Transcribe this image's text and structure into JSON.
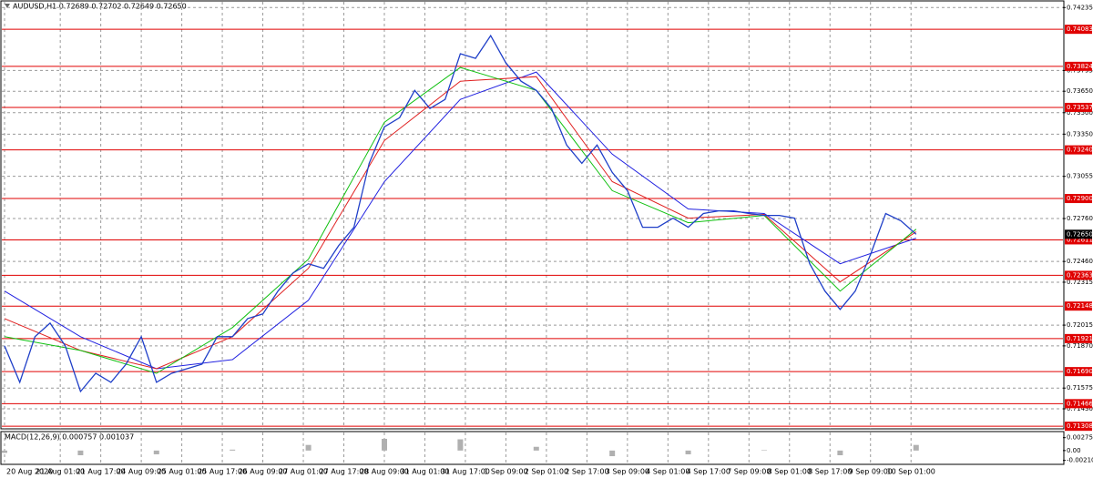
{
  "header": "AUDUSD,H1  0.72689 0.72702 0.72649 0.72650",
  "chart_data": [
    {
      "type": "line",
      "x": [
        0,
        6,
        12,
        18,
        24,
        30,
        36,
        42,
        48,
        54,
        60,
        66,
        72,
        78,
        84,
        90,
        96,
        102,
        108,
        114,
        120,
        126,
        132,
        138,
        144,
        150,
        156,
        162,
        168,
        174,
        180,
        186,
        192,
        198,
        204,
        210,
        216,
        222,
        228,
        234,
        240,
        246,
        252,
        258,
        264,
        270,
        276,
        282,
        288,
        294,
        300,
        306,
        312,
        318,
        324,
        330,
        336,
        342,
        348,
        354,
        360
      ],
      "series": [
        {
          "name": "AUDUSD,H1",
          "color": "#1f3fc8",
          "values": [
            0.7187,
            0.71615,
            0.71934,
            0.72029,
            0.7187,
            0.71551,
            0.71678,
            0.71615,
            0.71742,
            0.71934,
            0.71615,
            0.71678,
            0.7171,
            0.71742,
            0.71934,
            0.71934,
            0.72061,
            0.72093,
            0.72253,
            0.7238,
            0.72444,
            0.72412,
            0.72572,
            0.72699,
            0.73146,
            0.73401,
            0.73465,
            0.73656,
            0.73529,
            0.73593,
            0.73912,
            0.7388,
            0.74039,
            0.73848,
            0.7372,
            0.73656,
            0.73529,
            0.73274,
            0.73146,
            0.73274,
            0.73082,
            0.72955,
            0.72699,
            0.72699,
            0.72763,
            0.72699,
            0.72795,
            0.72814,
            0.72814,
            0.72795,
            0.72782,
            0.72782,
            0.72763,
            0.72444,
            0.72253,
            0.72125,
            0.72253,
            0.72508,
            0.72795,
            0.72744,
            0.7265
          ]
        }
      ],
      "ma_x": [
        0,
        30,
        60,
        90,
        120,
        150,
        180,
        210,
        240,
        270,
        300,
        330,
        360
      ],
      "ma": [
        {
          "color": "#2020e0",
          "values": [
            0.72253,
            0.71934,
            0.7171,
            0.71774,
            0.72189,
            0.73018,
            0.73593,
            0.73784,
            0.7321,
            0.72827,
            0.72795,
            0.72444,
            0.72623
          ]
        },
        {
          "color": "#e02020",
          "values": [
            0.72061,
            0.71838,
            0.7171,
            0.71934,
            0.72412,
            0.73305,
            0.7372,
            0.73752,
            0.73018,
            0.72763,
            0.72789,
            0.72317,
            0.72667
          ]
        },
        {
          "color": "#10c010",
          "values": [
            0.71934,
            0.71838,
            0.71678,
            0.71998,
            0.72476,
            0.73433,
            0.73816,
            0.73656,
            0.72955,
            0.72731,
            0.72782,
            0.72253,
            0.72686
          ]
        }
      ],
      "xlim": [
        0,
        418
      ],
      "xticks": [
        {
          "value": 0,
          "label": "20 Aug 2020"
        },
        {
          "value": 22,
          "label": "21 Aug 01:00"
        },
        {
          "value": 38,
          "label": "21 Aug 17:00"
        },
        {
          "value": 54,
          "label": "24 Aug 09:00"
        },
        {
          "value": 70,
          "label": "25 Aug 01:00"
        },
        {
          "value": 86,
          "label": "25 Aug 17:00"
        },
        {
          "value": 102,
          "label": "26 Aug 09:00"
        },
        {
          "value": 118,
          "label": "27 Aug 01:00"
        },
        {
          "value": 134,
          "label": "27 Aug 17:00"
        },
        {
          "value": 150,
          "label": "28 Aug 09:00"
        },
        {
          "value": 166,
          "label": "31 Aug 01:00"
        },
        {
          "value": 182,
          "label": "31 Aug 17:00"
        },
        {
          "value": 198,
          "label": "1 Sep 09:00"
        },
        {
          "value": 214,
          "label": "2 Sep 01:00"
        },
        {
          "value": 230,
          "label": "2 Sep 17:00"
        },
        {
          "value": 246,
          "label": "3 Sep 09:00"
        },
        {
          "value": 262,
          "label": "4 Sep 01:00"
        },
        {
          "value": 278,
          "label": "4 Sep 17:00"
        },
        {
          "value": 294,
          "label": "7 Sep 09:00"
        },
        {
          "value": 310,
          "label": "8 Sep 01:00"
        },
        {
          "value": 326,
          "label": "8 Sep 17:00"
        },
        {
          "value": 342,
          "label": "9 Sep 09:00"
        },
        {
          "value": 358,
          "label": "10 Sep 01:00"
        }
      ],
      "ylim": [
        0.7129,
        0.74275
      ],
      "yticks": [
        0.74235,
        0.73795,
        {
          "value": 0.7365,
          "label": "0.73650"
        },
        {
          "value": 0.735,
          "label": "0.73500"
        },
        {
          "value": 0.7335,
          "label": "0.73350"
        },
        0.73055,
        {
          "value": 0.7276,
          "label": "0.72760"
        },
        {
          "value": 0.7246,
          "label": "0.72460"
        },
        0.72315,
        0.72015,
        {
          "value": 0.7187,
          "label": "0.71870"
        },
        0.71575,
        {
          "value": 0.7143,
          "label": "0.71430"
        }
      ],
      "levels": [
        0.74083,
        0.73824,
        0.73537,
        {
          "value": 0.7324,
          "label": "0.73240"
        },
        {
          "value": 0.729,
          "label": "0.72900"
        },
        0.72611,
        0.72363,
        0.72148,
        0.71921,
        {
          "value": 0.7169,
          "label": "0.71690"
        },
        0.71466,
        0.71308
      ],
      "level_color": "#e00000",
      "current": {
        "value": 0.7265,
        "label": "0.72650"
      },
      "grid": true
    },
    {
      "type": "bar",
      "title": "MACD(12,26,9) 0.000757 0.001037",
      "x": [
        0,
        30,
        60,
        90,
        120,
        150,
        180,
        210,
        240,
        270,
        300,
        330,
        360
      ],
      "values": [
        -0.0005,
        -0.001,
        -0.0008,
        0.0002,
        0.0012,
        0.0025,
        0.0024,
        0.0008,
        -0.0012,
        -0.0008,
        0.0001,
        -0.001,
        0.0012
      ],
      "color": "#b0b0b0",
      "xlim": [
        0,
        418
      ],
      "ylim": [
        -0.00275,
        0.00386
      ],
      "yticks": [
        0.002754,
        {
          "value": 0,
          "label": "0.00"
        },
        {
          "value": -0.0021,
          "label": "-0.00210"
        }
      ]
    }
  ]
}
